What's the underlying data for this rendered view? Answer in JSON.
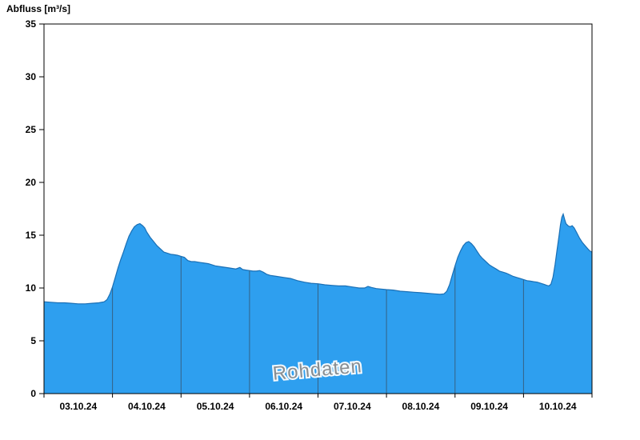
{
  "page": {
    "background": "#ffffff"
  },
  "y_axis_title": "Abfluss [m³/s]",
  "watermark": "Rohdaten",
  "colors": {
    "area_fill": "#2E9FEF",
    "area_outline": "#1A6FB5",
    "day_separator": "#38536B",
    "axis": "#000000",
    "text": "#000000",
    "watermark_fill": "#8E8E8E",
    "watermark_halo": "#FFFFFF"
  },
  "chart_data": {
    "type": "area",
    "title": "",
    "ylabel": "Abfluss [m³/s]",
    "xlabel": "",
    "ylim": [
      0,
      35
    ],
    "y_ticks": [
      0,
      5,
      10,
      15,
      20,
      25,
      30,
      35
    ],
    "x_domain_days": 8,
    "x_tick_days": [
      0,
      1,
      2,
      3,
      4,
      5,
      6,
      7,
      8
    ],
    "x_labels": [
      "03.10.24",
      "04.10.24",
      "05.10.24",
      "06.10.24",
      "07.10.24",
      "08.10.24",
      "09.10.24",
      "10.10.24"
    ],
    "grid": "off",
    "legend": "none",
    "watermark": "Rohdaten",
    "series": [
      {
        "name": "Abfluss Rohdaten",
        "unit": "m³/s",
        "points": [
          [
            0.0,
            8.7
          ],
          [
            0.1,
            8.65
          ],
          [
            0.2,
            8.6
          ],
          [
            0.3,
            8.6
          ],
          [
            0.4,
            8.55
          ],
          [
            0.5,
            8.5
          ],
          [
            0.6,
            8.5
          ],
          [
            0.7,
            8.55
          ],
          [
            0.8,
            8.6
          ],
          [
            0.88,
            8.7
          ],
          [
            0.92,
            8.9
          ],
          [
            0.96,
            9.4
          ],
          [
            1.0,
            10.1
          ],
          [
            1.04,
            11.0
          ],
          [
            1.08,
            11.9
          ],
          [
            1.12,
            12.7
          ],
          [
            1.16,
            13.4
          ],
          [
            1.2,
            14.2
          ],
          [
            1.24,
            14.9
          ],
          [
            1.28,
            15.4
          ],
          [
            1.32,
            15.8
          ],
          [
            1.36,
            16.0
          ],
          [
            1.4,
            16.1
          ],
          [
            1.44,
            15.9
          ],
          [
            1.47,
            15.7
          ],
          [
            1.5,
            15.3
          ],
          [
            1.55,
            14.8
          ],
          [
            1.6,
            14.4
          ],
          [
            1.65,
            14.0
          ],
          [
            1.7,
            13.7
          ],
          [
            1.75,
            13.4
          ],
          [
            1.8,
            13.3
          ],
          [
            1.85,
            13.2
          ],
          [
            1.9,
            13.15
          ],
          [
            1.95,
            13.1
          ],
          [
            2.0,
            13.0
          ],
          [
            2.05,
            12.9
          ],
          [
            2.1,
            12.6
          ],
          [
            2.15,
            12.5
          ],
          [
            2.2,
            12.5
          ],
          [
            2.25,
            12.45
          ],
          [
            2.3,
            12.4
          ],
          [
            2.4,
            12.3
          ],
          [
            2.5,
            12.1
          ],
          [
            2.6,
            12.0
          ],
          [
            2.7,
            11.9
          ],
          [
            2.8,
            11.8
          ],
          [
            2.86,
            11.95
          ],
          [
            2.9,
            11.75
          ],
          [
            2.95,
            11.7
          ],
          [
            3.0,
            11.65
          ],
          [
            3.05,
            11.6
          ],
          [
            3.1,
            11.6
          ],
          [
            3.15,
            11.65
          ],
          [
            3.2,
            11.5
          ],
          [
            3.25,
            11.3
          ],
          [
            3.3,
            11.2
          ],
          [
            3.4,
            11.1
          ],
          [
            3.5,
            11.0
          ],
          [
            3.6,
            10.9
          ],
          [
            3.7,
            10.7
          ],
          [
            3.8,
            10.55
          ],
          [
            3.9,
            10.45
          ],
          [
            4.0,
            10.4
          ],
          [
            4.1,
            10.3
          ],
          [
            4.2,
            10.25
          ],
          [
            4.3,
            10.2
          ],
          [
            4.4,
            10.2
          ],
          [
            4.5,
            10.1
          ],
          [
            4.6,
            10.0
          ],
          [
            4.68,
            10.0
          ],
          [
            4.73,
            10.15
          ],
          [
            4.78,
            10.05
          ],
          [
            4.85,
            9.95
          ],
          [
            4.92,
            9.9
          ],
          [
            5.0,
            9.85
          ],
          [
            5.1,
            9.8
          ],
          [
            5.2,
            9.7
          ],
          [
            5.3,
            9.65
          ],
          [
            5.4,
            9.6
          ],
          [
            5.5,
            9.55
          ],
          [
            5.6,
            9.5
          ],
          [
            5.7,
            9.45
          ],
          [
            5.78,
            9.4
          ],
          [
            5.84,
            9.45
          ],
          [
            5.88,
            9.7
          ],
          [
            5.92,
            10.3
          ],
          [
            5.96,
            11.2
          ],
          [
            6.0,
            12.1
          ],
          [
            6.04,
            12.9
          ],
          [
            6.08,
            13.5
          ],
          [
            6.12,
            14.0
          ],
          [
            6.16,
            14.3
          ],
          [
            6.2,
            14.4
          ],
          [
            6.24,
            14.2
          ],
          [
            6.28,
            13.9
          ],
          [
            6.32,
            13.5
          ],
          [
            6.36,
            13.1
          ],
          [
            6.4,
            12.8
          ],
          [
            6.45,
            12.5
          ],
          [
            6.5,
            12.2
          ],
          [
            6.55,
            12.0
          ],
          [
            6.6,
            11.8
          ],
          [
            6.65,
            11.6
          ],
          [
            6.7,
            11.5
          ],
          [
            6.75,
            11.4
          ],
          [
            6.8,
            11.25
          ],
          [
            6.85,
            11.1
          ],
          [
            6.9,
            11.0
          ],
          [
            6.95,
            10.9
          ],
          [
            7.0,
            10.8
          ],
          [
            7.05,
            10.7
          ],
          [
            7.1,
            10.65
          ],
          [
            7.15,
            10.6
          ],
          [
            7.2,
            10.55
          ],
          [
            7.25,
            10.45
          ],
          [
            7.3,
            10.35
          ],
          [
            7.34,
            10.25
          ],
          [
            7.37,
            10.2
          ],
          [
            7.4,
            10.35
          ],
          [
            7.43,
            11.0
          ],
          [
            7.46,
            12.2
          ],
          [
            7.49,
            13.6
          ],
          [
            7.52,
            15.0
          ],
          [
            7.54,
            16.0
          ],
          [
            7.56,
            16.7
          ],
          [
            7.58,
            17.0
          ],
          [
            7.6,
            16.5
          ],
          [
            7.62,
            16.1
          ],
          [
            7.65,
            15.9
          ],
          [
            7.68,
            15.8
          ],
          [
            7.71,
            15.9
          ],
          [
            7.74,
            15.7
          ],
          [
            7.78,
            15.2
          ],
          [
            7.82,
            14.7
          ],
          [
            7.86,
            14.3
          ],
          [
            7.9,
            14.0
          ],
          [
            7.94,
            13.7
          ],
          [
            7.97,
            13.5
          ],
          [
            8.0,
            13.4
          ]
        ]
      }
    ]
  }
}
